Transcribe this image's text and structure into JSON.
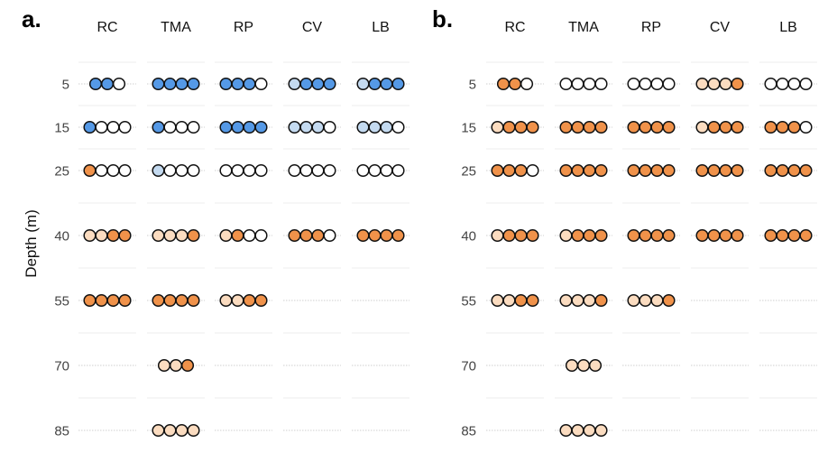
{
  "chart_data": {
    "type": "dot-matrix",
    "ylabel": "Depth (m)",
    "sites": [
      "RC",
      "TMA",
      "RP",
      "CV",
      "LB"
    ],
    "depths": [
      5,
      15,
      25,
      40,
      55,
      70,
      85
    ],
    "palette": {
      "blue": "#5599e6",
      "light_blue": "#c4daf0",
      "orange": "#f0924a",
      "light_orange": "#fbdcc0",
      "white": "#ffffff",
      "stroke": "#111111",
      "grid": "#cfcfcf"
    },
    "panels": [
      {
        "label": "a.",
        "cells": [
          {
            "site": "RC",
            "depth": 5,
            "dots": [
              "blue",
              "blue",
              "white"
            ]
          },
          {
            "site": "TMA",
            "depth": 5,
            "dots": [
              "blue",
              "blue",
              "blue",
              "blue"
            ]
          },
          {
            "site": "RP",
            "depth": 5,
            "dots": [
              "blue",
              "blue",
              "blue",
              "white"
            ]
          },
          {
            "site": "CV",
            "depth": 5,
            "dots": [
              "light_blue",
              "blue",
              "blue",
              "blue"
            ]
          },
          {
            "site": "LB",
            "depth": 5,
            "dots": [
              "light_blue",
              "blue",
              "blue",
              "blue"
            ]
          },
          {
            "site": "RC",
            "depth": 15,
            "dots": [
              "blue",
              "white",
              "white",
              "white"
            ]
          },
          {
            "site": "TMA",
            "depth": 15,
            "dots": [
              "blue",
              "white",
              "white",
              "white"
            ]
          },
          {
            "site": "RP",
            "depth": 15,
            "dots": [
              "blue",
              "blue",
              "blue",
              "blue"
            ]
          },
          {
            "site": "CV",
            "depth": 15,
            "dots": [
              "light_blue",
              "light_blue",
              "light_blue",
              "white"
            ]
          },
          {
            "site": "LB",
            "depth": 15,
            "dots": [
              "light_blue",
              "light_blue",
              "light_blue",
              "white"
            ]
          },
          {
            "site": "RC",
            "depth": 25,
            "dots": [
              "orange",
              "white",
              "white",
              "white"
            ]
          },
          {
            "site": "TMA",
            "depth": 25,
            "dots": [
              "light_blue",
              "white",
              "white",
              "white"
            ]
          },
          {
            "site": "RP",
            "depth": 25,
            "dots": [
              "white",
              "white",
              "white",
              "white"
            ]
          },
          {
            "site": "CV",
            "depth": 25,
            "dots": [
              "white",
              "white",
              "white",
              "white"
            ]
          },
          {
            "site": "LB",
            "depth": 25,
            "dots": [
              "white",
              "white",
              "white",
              "white"
            ]
          },
          {
            "site": "RC",
            "depth": 40,
            "dots": [
              "light_orange",
              "light_orange",
              "orange",
              "orange"
            ]
          },
          {
            "site": "TMA",
            "depth": 40,
            "dots": [
              "light_orange",
              "light_orange",
              "light_orange",
              "orange"
            ]
          },
          {
            "site": "RP",
            "depth": 40,
            "dots": [
              "light_orange",
              "orange",
              "white",
              "white"
            ]
          },
          {
            "site": "CV",
            "depth": 40,
            "dots": [
              "orange",
              "orange",
              "orange",
              "white"
            ]
          },
          {
            "site": "LB",
            "depth": 40,
            "dots": [
              "orange",
              "orange",
              "orange",
              "orange"
            ]
          },
          {
            "site": "RC",
            "depth": 55,
            "dots": [
              "orange",
              "orange",
              "orange",
              "orange"
            ]
          },
          {
            "site": "TMA",
            "depth": 55,
            "dots": [
              "orange",
              "orange",
              "orange",
              "orange"
            ]
          },
          {
            "site": "RP",
            "depth": 55,
            "dots": [
              "light_orange",
              "light_orange",
              "orange",
              "orange"
            ]
          },
          {
            "site": "TMA",
            "depth": 70,
            "dots": [
              "light_orange",
              "light_orange",
              "orange"
            ]
          },
          {
            "site": "TMA",
            "depth": 85,
            "dots": [
              "light_orange",
              "light_orange",
              "light_orange",
              "light_orange"
            ]
          }
        ]
      },
      {
        "label": "b.",
        "cells": [
          {
            "site": "RC",
            "depth": 5,
            "dots": [
              "orange",
              "orange",
              "white"
            ]
          },
          {
            "site": "TMA",
            "depth": 5,
            "dots": [
              "white",
              "white",
              "white",
              "white"
            ]
          },
          {
            "site": "RP",
            "depth": 5,
            "dots": [
              "white",
              "white",
              "white",
              "white"
            ]
          },
          {
            "site": "CV",
            "depth": 5,
            "dots": [
              "light_orange",
              "light_orange",
              "light_orange",
              "orange"
            ]
          },
          {
            "site": "LB",
            "depth": 5,
            "dots": [
              "white",
              "white",
              "white",
              "white"
            ]
          },
          {
            "site": "RC",
            "depth": 15,
            "dots": [
              "light_orange",
              "orange",
              "orange",
              "orange"
            ]
          },
          {
            "site": "TMA",
            "depth": 15,
            "dots": [
              "orange",
              "orange",
              "orange",
              "orange"
            ]
          },
          {
            "site": "RP",
            "depth": 15,
            "dots": [
              "orange",
              "orange",
              "orange",
              "orange"
            ]
          },
          {
            "site": "CV",
            "depth": 15,
            "dots": [
              "light_orange",
              "orange",
              "orange",
              "orange"
            ]
          },
          {
            "site": "LB",
            "depth": 15,
            "dots": [
              "orange",
              "orange",
              "orange",
              "white"
            ]
          },
          {
            "site": "RC",
            "depth": 25,
            "dots": [
              "orange",
              "orange",
              "orange",
              "white"
            ]
          },
          {
            "site": "TMA",
            "depth": 25,
            "dots": [
              "orange",
              "orange",
              "orange",
              "orange"
            ]
          },
          {
            "site": "RP",
            "depth": 25,
            "dots": [
              "orange",
              "orange",
              "orange",
              "orange"
            ]
          },
          {
            "site": "CV",
            "depth": 25,
            "dots": [
              "orange",
              "orange",
              "orange",
              "orange"
            ]
          },
          {
            "site": "LB",
            "depth": 25,
            "dots": [
              "orange",
              "orange",
              "orange",
              "orange"
            ]
          },
          {
            "site": "RC",
            "depth": 40,
            "dots": [
              "light_orange",
              "orange",
              "orange",
              "orange"
            ]
          },
          {
            "site": "TMA",
            "depth": 40,
            "dots": [
              "light_orange",
              "orange",
              "orange",
              "orange"
            ]
          },
          {
            "site": "RP",
            "depth": 40,
            "dots": [
              "orange",
              "orange",
              "orange",
              "orange"
            ]
          },
          {
            "site": "CV",
            "depth": 40,
            "dots": [
              "orange",
              "orange",
              "orange",
              "orange"
            ]
          },
          {
            "site": "LB",
            "depth": 40,
            "dots": [
              "orange",
              "orange",
              "orange",
              "orange"
            ]
          },
          {
            "site": "RC",
            "depth": 55,
            "dots": [
              "light_orange",
              "light_orange",
              "orange",
              "orange"
            ]
          },
          {
            "site": "TMA",
            "depth": 55,
            "dots": [
              "light_orange",
              "light_orange",
              "light_orange",
              "orange"
            ]
          },
          {
            "site": "RP",
            "depth": 55,
            "dots": [
              "light_orange",
              "light_orange",
              "light_orange",
              "orange"
            ]
          },
          {
            "site": "TMA",
            "depth": 70,
            "dots": [
              "light_orange",
              "light_orange",
              "light_orange"
            ]
          },
          {
            "site": "TMA",
            "depth": 85,
            "dots": [
              "light_orange",
              "light_orange",
              "light_orange",
              "light_orange"
            ]
          }
        ]
      }
    ]
  }
}
